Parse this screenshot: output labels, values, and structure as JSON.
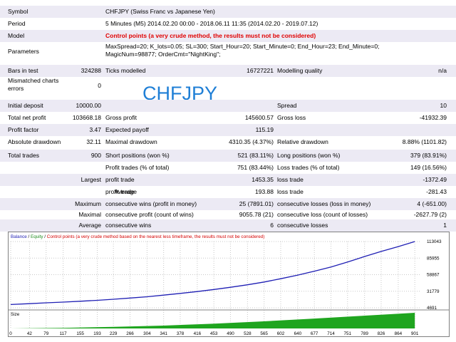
{
  "report": {
    "symbol_label": "Symbol",
    "symbol_value": "CHFJPY (Swiss Franc vs Japanese Yen)",
    "period_label": "Period",
    "period_value": "5 Minutes (M5) 2014.02.20 00:00 - 2018.06.11 11:35 (2014.02.20 - 2019.07.12)",
    "model_label": "Model",
    "model_value": "Control points (a very crude method, the results must not be considered)",
    "parameters_label": "Parameters",
    "parameters_line1": "MaxSpread=20; K_lots=0.05; SL=300; Start_Hour=20; Start_Minute=0; End_Hour=23; End_Minute=0;",
    "parameters_line2": "MagicNum=98877; OrderCmt=\"NightKing\";",
    "bars_label": "Bars in test",
    "bars_value": "324288",
    "ticks_label": "Ticks modelled",
    "ticks_value": "16727221",
    "quality_label": "Modelling quality",
    "quality_value": "n/a",
    "mismatch_label_1": "Mismatched charts",
    "mismatch_label_2": "errors",
    "mismatch_value": "0",
    "watermark": "CHFJPY",
    "initial_deposit_label": "Initial deposit",
    "initial_deposit_value": "10000.00",
    "spread_label": "Spread",
    "spread_value": "10",
    "net_profit_label": "Total net profit",
    "net_profit_value": "103668.18",
    "gross_profit_label": "Gross profit",
    "gross_profit_value": "145600.57",
    "gross_loss_label": "Gross loss",
    "gross_loss_value": "-41932.39",
    "profit_factor_label": "Profit factor",
    "profit_factor_value": "3.47",
    "expected_payoff_label": "Expected payoff",
    "expected_payoff_value": "115.19",
    "abs_drawdown_label": "Absolute drawdown",
    "abs_drawdown_value": "32.11",
    "max_drawdown_label": "Maximal drawdown",
    "max_drawdown_value": "4310.35 (4.37%)",
    "rel_drawdown_label": "Relative drawdown",
    "rel_drawdown_value": "8.88% (1101.82)",
    "total_trades_label": "Total trades",
    "total_trades_value": "900",
    "short_label": "Short positions (won %)",
    "short_value": "521 (83.11%)",
    "long_label": "Long positions (won %)",
    "long_value": "379 (83.91%)",
    "profit_trades_label": "Profit trades (% of total)",
    "profit_trades_value": "751 (83.44%)",
    "loss_trades_label": "Loss trades (% of total)",
    "loss_trades_value": "149 (16.56%)",
    "largest_label": "Largest",
    "largest_profit_label": "profit trade",
    "largest_profit_value": "1453.35",
    "largest_loss_label": "loss trade",
    "largest_loss_value": "-1372.49",
    "average_label": "Average",
    "average_profit_label": "profit trade",
    "average_profit_value": "193.88",
    "average_loss_label": "loss trade",
    "average_loss_value": "-281.43",
    "maximum_label": "Maximum",
    "max_cons_wins_label": "consecutive wins (profit in money)",
    "max_cons_wins_value": "25 (7891.01)",
    "max_cons_losses_label": "consecutive losses (loss in money)",
    "max_cons_losses_value": "4 (-651.00)",
    "maximal_label": "Maximal",
    "maximal_cons_profit_label": "consecutive profit (count of wins)",
    "maximal_cons_profit_value": "9055.78 (21)",
    "maximal_cons_loss_label": "consecutive loss (count of losses)",
    "maximal_cons_loss_value": "-2627.79 (2)",
    "avg_label": "Average",
    "avg_cons_wins_label": "consecutive wins",
    "avg_cons_wins_value": "6",
    "avg_cons_losses_label": "consecutive losses",
    "avg_cons_losses_value": "1"
  },
  "chart_legend": {
    "balance": "Balance",
    "sep1": " / ",
    "equity": "Equity",
    "sep2": " / ",
    "note": "Control points (a very crude method based on the nearest less timeframe, the results must not be considered)"
  },
  "colors": {
    "balance_line": "#1f1fb4",
    "equity_legend": "#1e8c1e",
    "control_note": "#d40000",
    "size_bars": "#1fa51f",
    "chart_grid": "#c8c8c8",
    "row_alt": "#eceaf4"
  },
  "chart_data": {
    "type": "line",
    "title": "",
    "ylim": [
      4691,
      113043
    ],
    "xlim": [
      0,
      915
    ],
    "y_ticks": [
      "113043",
      "85955",
      "58867",
      "31779",
      "4691"
    ],
    "x_ticks": [
      "0",
      "42",
      "79",
      "117",
      "155",
      "193",
      "229",
      "266",
      "304",
      "341",
      "378",
      "416",
      "453",
      "490",
      "528",
      "565",
      "602",
      "640",
      "677",
      "714",
      "751",
      "789",
      "826",
      "864",
      "901"
    ],
    "grid": true,
    "series": [
      {
        "name": "Balance",
        "x": [
          0,
          42,
          79,
          117,
          155,
          193,
          229,
          266,
          304,
          341,
          378,
          416,
          453,
          490,
          528,
          565,
          602,
          640,
          677,
          714,
          751,
          789,
          826,
          864,
          901
        ],
        "values": [
          10000,
          11500,
          12800,
          14000,
          15400,
          16900,
          18700,
          20600,
          22800,
          25400,
          28200,
          31300,
          34600,
          38200,
          42300,
          46900,
          52200,
          58200,
          64600,
          71400,
          79500,
          88600,
          96800,
          104800,
          113043
        ]
      }
    ],
    "size_panel": {
      "label": "Size",
      "ylim": [
        0,
        1
      ],
      "x": [
        0,
        120,
        230,
        340,
        450,
        560,
        670,
        780,
        901
      ],
      "values": [
        0.0,
        0.04,
        0.1,
        0.18,
        0.3,
        0.45,
        0.62,
        0.8,
        1.0
      ]
    }
  }
}
